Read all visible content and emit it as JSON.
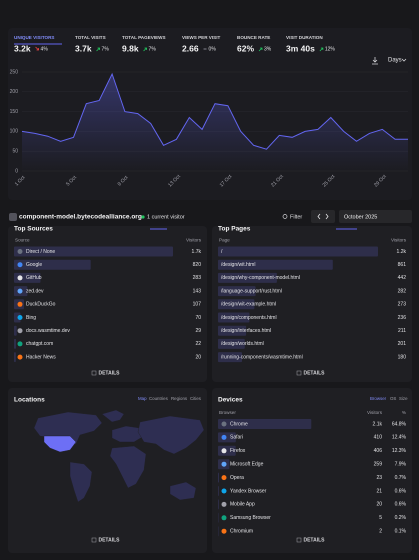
{
  "stats": [
    {
      "label": "UNIQUE VISITORS",
      "value": "3.2k",
      "change": "4%",
      "trend": "down"
    },
    {
      "label": "TOTAL VISITS",
      "value": "3.7k",
      "change": "7%",
      "trend": "up"
    },
    {
      "label": "TOTAL PAGEVIEWS",
      "value": "9.8k",
      "change": "7%",
      "trend": "up"
    },
    {
      "label": "VIEWS PER VISIT",
      "value": "2.66",
      "change": "0%",
      "trend": "flat"
    },
    {
      "label": "BOUNCE RATE",
      "value": "62%",
      "change": "3%",
      "trend": "up"
    },
    {
      "label": "VISIT DURATION",
      "value": "3m 40s",
      "change": "12%",
      "trend": "up"
    }
  ],
  "interval": "Days",
  "chart_data": {
    "type": "line",
    "color": "#6366f1",
    "categories": [
      "1 Oct",
      null,
      null,
      null,
      "5 Oct",
      null,
      null,
      null,
      "9 Oct",
      null,
      null,
      null,
      "13 Oct",
      null,
      null,
      null,
      "17 Oct",
      null,
      null,
      null,
      "21 Oct",
      null,
      null,
      null,
      "25 Oct",
      null,
      null,
      null,
      "29 Oct",
      null,
      null
    ],
    "values": [
      100,
      95,
      88,
      75,
      85,
      170,
      178,
      245,
      150,
      145,
      120,
      65,
      80,
      135,
      105,
      170,
      165,
      100,
      65,
      55,
      90,
      85,
      100,
      105,
      135,
      100,
      75,
      95,
      105,
      80,
      80
    ],
    "ylim": [
      0,
      250
    ],
    "yticks": [
      0,
      50,
      100,
      150,
      200,
      250
    ],
    "grid": true
  },
  "site": "component-model.bytecodealliance.org",
  "current_visitors": "1 current visitor",
  "filter": "Filter",
  "period": "October 2025",
  "sources": {
    "title": "Top Sources",
    "columns": [
      "Source",
      "Visitors"
    ],
    "names": [
      "Direct / None",
      "Google",
      "GitHub",
      "zed.dev",
      "DuckDuckGo",
      "Bing",
      "docs.wasmtime.dev",
      "chatgpt.com",
      "Hacker News"
    ],
    "values": [
      1700,
      820,
      283,
      143,
      107,
      70,
      29,
      22,
      20
    ],
    "value_labels": [
      "1.7k",
      "820",
      "283",
      "143",
      "107",
      "70",
      "29",
      "22",
      "20"
    ],
    "details": "DETAILS"
  },
  "pages": {
    "title": "Top Pages",
    "columns": [
      "Page",
      "Visitors"
    ],
    "names": [
      "/",
      "/design/wit.html",
      "/design/why-component-model.html",
      "/language-support/rust.html",
      "/design/wit-example.html",
      "/design/components.html",
      "/design/interfaces.html",
      "/design/worlds.html",
      "/running-components/wasmtime.html"
    ],
    "values": [
      1200,
      861,
      442,
      282,
      273,
      236,
      211,
      201,
      180
    ],
    "value_labels": [
      "1.2k",
      "861",
      "442",
      "282",
      "273",
      "236",
      "211",
      "201",
      "180"
    ],
    "details": "DETAILS"
  },
  "locations": {
    "title": "Locations",
    "tabs": [
      "Map",
      "Countries",
      "Regions",
      "Cities"
    ],
    "details": "DETAILS"
  },
  "devices": {
    "title": "Devices",
    "tabs": [
      "Browser",
      "OS",
      "Size"
    ],
    "columns": [
      "Browser",
      "Visitors",
      "%"
    ],
    "names": [
      "Chrome",
      "Safari",
      "Firefox",
      "Microsoft Edge",
      "Opera",
      "Yandex Browser",
      "Mobile App",
      "Samsung Browser",
      "Chromium"
    ],
    "values": [
      2100,
      410,
      406,
      259,
      23,
      21,
      20,
      5,
      2
    ],
    "value_labels": [
      "2.1k",
      "410",
      "406",
      "259",
      "23",
      "21",
      "20",
      "5",
      "2"
    ],
    "percents": [
      64.8,
      12.4,
      12.3,
      7.9,
      0.7,
      0.6,
      0.6,
      0.2,
      0.1
    ],
    "percent_labels": [
      "64.8%",
      "12.4%",
      "12.3%",
      "7.9%",
      "0.7%",
      "0.6%",
      "0.6%",
      "0.2%",
      "0.1%"
    ],
    "details": "DETAILS"
  }
}
